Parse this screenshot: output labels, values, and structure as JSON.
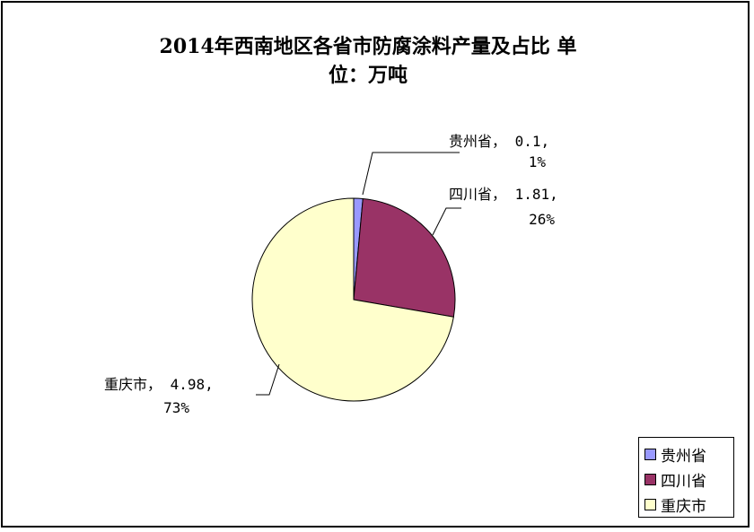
{
  "chart_data": {
    "type": "pie",
    "title": "2014年西南地区各省市防腐涂料产量及占比 单位：万吨",
    "title_lines": [
      "2014年西南地区各省市防腐涂料产量及占比 单",
      "位：万吨"
    ],
    "slices": [
      {
        "name": "贵州省",
        "value": 0.1,
        "percent": "1%",
        "label_line1": "贵州省， 0.1,",
        "label_line2": "1%",
        "color": "#9999FF"
      },
      {
        "name": "四川省",
        "value": 1.81,
        "percent": "26%",
        "label_line1": "四川省， 1.81,",
        "label_line2": "26%",
        "color": "#993366"
      },
      {
        "name": "重庆市",
        "value": 4.98,
        "percent": "73%",
        "label_line1": "重庆市， 4.98,",
        "label_line2": "73%",
        "color": "#FFFFCC"
      }
    ],
    "legend_position": "bottom-right"
  }
}
